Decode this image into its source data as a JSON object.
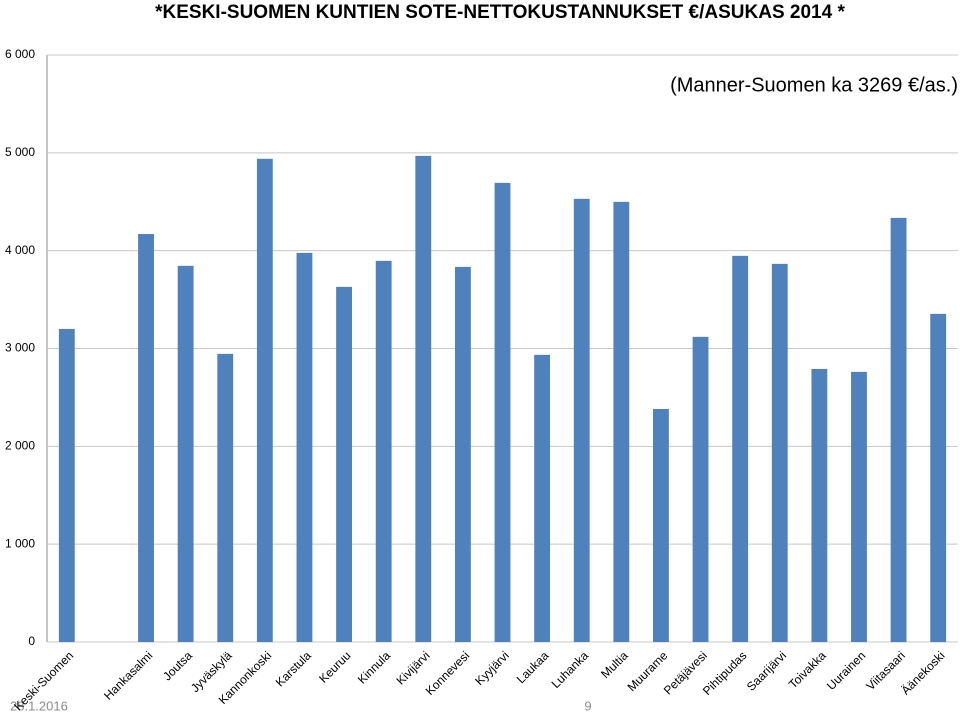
{
  "chart_data": {
    "type": "bar",
    "title": "*KESKI-SUOMEN KUNTIEN  SOTE-NETTOKUSTANNUKSET €/ASUKAS 2014 *",
    "subtitle": "(Manner-Suomen ka 3269 €/as.)",
    "categories": [
      "Keski-Suomen",
      null,
      "Hankasalmi",
      "Joutsa",
      "Jyväskylä",
      "Kannonkoski",
      "Karstula",
      "Keuruu",
      "Kinnula",
      "Kivijärvi",
      "Konnevesi",
      "Kyyjärvi",
      "Laukaa",
      "Luhanka",
      "Multia",
      "Muurame",
      "Petäjävesi",
      "Pihtipudas",
      "Saarijärvi",
      "Toivakka",
      "Uurainen",
      "Viitasaari",
      "Äänekoski"
    ],
    "values": [
      3200,
      null,
      4170,
      3845,
      2945,
      4939,
      3977,
      3630,
      3896,
      4969,
      3834,
      4693,
      2935,
      4530,
      4499,
      2382,
      3119,
      3947,
      3865,
      2791,
      2761,
      4335,
      3354
    ],
    "color": "#4f81bd",
    "ylim": [
      0,
      6000
    ],
    "yticks": [
      0,
      {
        "value": 1000,
        "label": "1 000"
      },
      {
        "value": 2000,
        "label": "2 000"
      },
      {
        "value": 3000,
        "label": "3 000"
      },
      {
        "value": 4000,
        "label": "4 000"
      },
      {
        "value": 5000,
        "label": "5 000"
      },
      {
        "value": 6000,
        "label": "6 000"
      }
    ],
    "grid": true
  },
  "footer": {
    "date": "28.1.2016",
    "page": "9"
  }
}
